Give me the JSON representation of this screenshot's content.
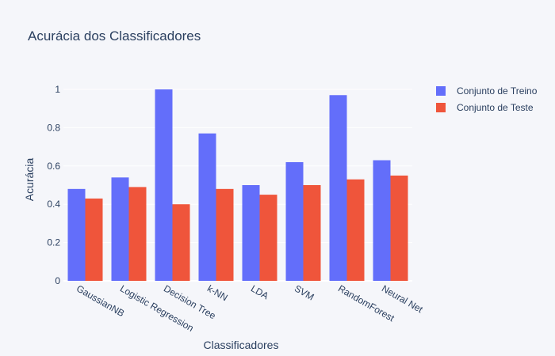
{
  "chart_data": {
    "type": "bar",
    "title": "Acurácia dos Classificadores",
    "xlabel": "Classificadores",
    "ylabel": "Acurácia",
    "categories": [
      "GaussianNB",
      "Logistic Regression",
      "Decision Tree",
      "k-NN",
      "LDA",
      "SVM",
      "RandomForest",
      "Neural Net"
    ],
    "series": [
      {
        "name": "Conjunto de Treino",
        "color": "#636efa",
        "values": [
          0.48,
          0.54,
          1.0,
          0.77,
          0.5,
          0.62,
          0.97,
          0.63
        ]
      },
      {
        "name": "Conjunto de Teste",
        "color": "#ef553b",
        "values": [
          0.43,
          0.49,
          0.4,
          0.48,
          0.45,
          0.5,
          0.53,
          0.55
        ]
      }
    ],
    "ylim": [
      0,
      1.0
    ],
    "yticks": [
      0,
      0.2,
      0.4,
      0.6,
      0.8,
      1
    ],
    "ytick_labels": [
      "0",
      "0.2",
      "0.4",
      "0.6",
      "0.8",
      "1"
    ],
    "grid": true,
    "legend_position": "top-right",
    "xtick_rotation": "diagonal"
  }
}
